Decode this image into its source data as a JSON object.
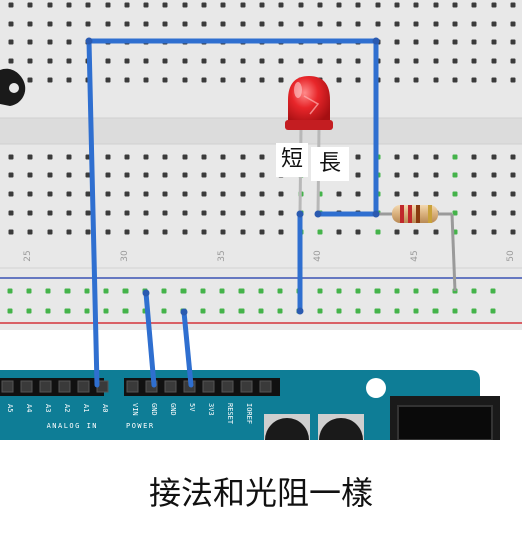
{
  "breadboard": {
    "column_labels": [
      "25",
      "30",
      "35",
      "40",
      "45",
      "50"
    ]
  },
  "led": {
    "short_leg_label": "短",
    "long_leg_label": "長"
  },
  "arduino": {
    "analog_pins": [
      "A5",
      "A4",
      "A3",
      "A2",
      "A1",
      "A0"
    ],
    "analog_header_label": "ANALOG IN",
    "power_pins": [
      "VIN",
      "GND",
      "GND",
      "5V",
      "3V3",
      "RESET",
      "IOREF"
    ],
    "power_header_label": "POWER"
  },
  "caption": "接法和光阻一樣",
  "colors": {
    "wire": "#2f6fd0",
    "breadboard": "#e7e7e7",
    "board": "#0e7d96",
    "led": "#e8262a",
    "rail_red": "#d4333a",
    "rail_blue": "#3a52b4",
    "connected_hole": "#44b34a"
  }
}
